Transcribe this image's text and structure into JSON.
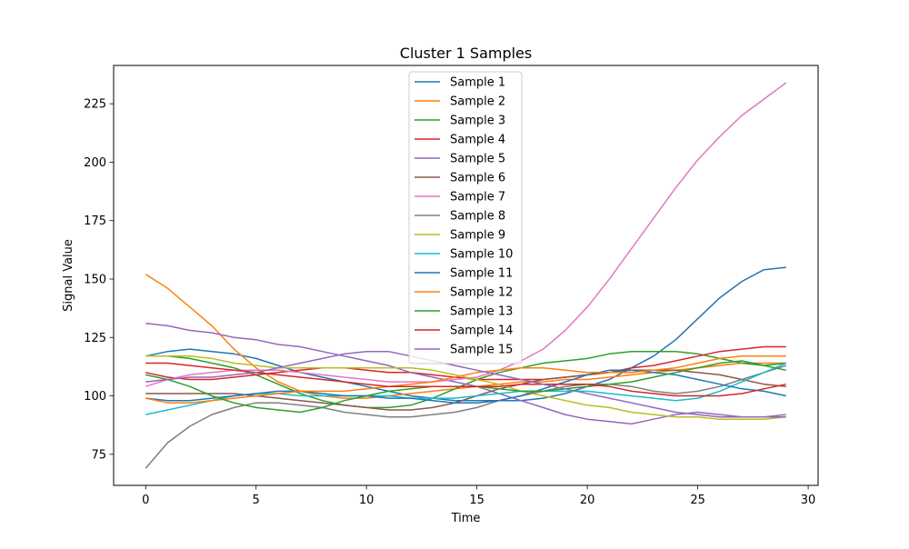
{
  "chart_data": {
    "type": "line",
    "title": "Cluster 1 Samples",
    "xlabel": "Time",
    "ylabel": "Signal Value",
    "xlim": [
      -1.45,
      30.45
    ],
    "ylim": [
      61.7,
      241.4
    ],
    "xticks": [
      0,
      5,
      10,
      15,
      20,
      25,
      30
    ],
    "yticks": [
      75,
      100,
      125,
      150,
      175,
      200,
      225
    ],
    "xtick_labels": [
      "0",
      "5",
      "10",
      "15",
      "20",
      "25",
      "30"
    ],
    "ytick_labels": [
      "75",
      "100",
      "125",
      "150",
      "175",
      "200",
      "225"
    ],
    "grid": false,
    "legend_position": "upper center",
    "x": [
      0,
      1,
      2,
      3,
      4,
      5,
      6,
      7,
      8,
      9,
      10,
      11,
      12,
      13,
      14,
      15,
      16,
      17,
      18,
      19,
      20,
      21,
      22,
      23,
      24,
      25,
      26,
      27,
      28,
      29
    ],
    "series": [
      {
        "name": "Sample 1",
        "color": "#1f77b4",
        "values": [
          117,
          119,
          120,
          119,
          118,
          116,
          113,
          110,
          108,
          106,
          104,
          102,
          100,
          99,
          98,
          98,
          98,
          98,
          99,
          101,
          104,
          107,
          112,
          117,
          124,
          133,
          142,
          149,
          154,
          155
        ]
      },
      {
        "name": "Sample 2",
        "color": "#ff7f0e",
        "values": [
          152,
          146,
          138,
          130,
          120,
          112,
          106,
          102,
          100,
          99,
          99,
          100,
          101,
          102,
          103,
          104,
          105,
          106,
          106,
          107,
          107,
          108,
          109,
          110,
          111,
          112,
          113,
          114,
          114,
          114
        ]
      },
      {
        "name": "Sample 3",
        "color": "#2ca02c",
        "values": [
          117,
          117,
          116,
          114,
          112,
          109,
          105,
          101,
          98,
          96,
          95,
          95,
          96,
          99,
          103,
          107,
          110,
          112,
          114,
          115,
          116,
          118,
          119,
          119,
          119,
          118,
          116,
          114,
          113,
          114
        ]
      },
      {
        "name": "Sample 4",
        "color": "#d62728",
        "values": [
          110,
          108,
          107,
          107,
          108,
          109,
          110,
          111,
          112,
          112,
          111,
          110,
          110,
          109,
          108,
          107,
          107,
          107,
          107,
          108,
          109,
          110,
          112,
          113,
          115,
          117,
          119,
          120,
          121,
          121
        ]
      },
      {
        "name": "Sample 5",
        "color": "#9467bd",
        "values": [
          131,
          130,
          128,
          127,
          125,
          124,
          122,
          121,
          119,
          117,
          115,
          113,
          110,
          108,
          106,
          104,
          101,
          98,
          95,
          92,
          90,
          89,
          88,
          90,
          92,
          93,
          92,
          91,
          91,
          92
        ]
      },
      {
        "name": "Sample 6",
        "color": "#8c564b",
        "values": [
          101,
          101,
          101,
          101,
          101,
          100,
          99,
          98,
          97,
          96,
          95,
          94,
          94,
          95,
          97,
          100,
          103,
          105,
          107,
          108,
          109,
          110,
          111,
          111,
          111,
          110,
          109,
          107,
          105,
          104
        ]
      },
      {
        "name": "Sample 7",
        "color": "#e377c2",
        "values": [
          104,
          107,
          109,
          110,
          111,
          111,
          111,
          110,
          109,
          108,
          107,
          106,
          106,
          106,
          107,
          108,
          111,
          115,
          120,
          128,
          138,
          150,
          163,
          176,
          189,
          201,
          211,
          220,
          227,
          234
        ]
      },
      {
        "name": "Sample 8",
        "color": "#7f7f7f",
        "values": [
          69,
          80,
          87,
          92,
          95,
          97,
          97,
          96,
          95,
          93,
          92,
          91,
          91,
          92,
          93,
          95,
          98,
          100,
          102,
          104,
          105,
          105,
          104,
          102,
          101,
          102,
          104,
          107,
          110,
          113
        ]
      },
      {
        "name": "Sample 9",
        "color": "#bcbd22",
        "values": [
          117,
          117,
          117,
          116,
          114,
          113,
          112,
          112,
          112,
          112,
          112,
          112,
          112,
          111,
          109,
          107,
          105,
          102,
          100,
          98,
          96,
          95,
          93,
          92,
          91,
          91,
          90,
          90,
          90,
          91
        ]
      },
      {
        "name": "Sample 10",
        "color": "#17becf",
        "values": [
          92,
          94,
          96,
          98,
          100,
          101,
          101,
          100,
          100,
          100,
          100,
          100,
          99,
          99,
          99,
          100,
          101,
          102,
          102,
          102,
          102,
          101,
          100,
          99,
          98,
          99,
          102,
          106,
          110,
          114
        ]
      },
      {
        "name": "Sample 11",
        "color": "#1f77b4",
        "values": [
          99,
          98,
          98,
          99,
          100,
          101,
          102,
          102,
          101,
          100,
          100,
          99,
          99,
          98,
          97,
          97,
          98,
          100,
          103,
          106,
          109,
          111,
          111,
          110,
          109,
          107,
          105,
          103,
          102,
          100
        ]
      },
      {
        "name": "Sample 12",
        "color": "#ff7f0e",
        "values": [
          99,
          97,
          97,
          98,
          99,
          100,
          101,
          102,
          102,
          102,
          103,
          104,
          105,
          106,
          108,
          110,
          111,
          112,
          112,
          111,
          110,
          110,
          110,
          111,
          112,
          114,
          116,
          117,
          117,
          117
        ]
      },
      {
        "name": "Sample 13",
        "color": "#2ca02c",
        "values": [
          109,
          107,
          104,
          100,
          97,
          95,
          94,
          93,
          95,
          98,
          100,
          102,
          103,
          104,
          104,
          104,
          103,
          102,
          102,
          103,
          104,
          105,
          106,
          108,
          110,
          112,
          114,
          115,
          113,
          111
        ]
      },
      {
        "name": "Sample 14",
        "color": "#d62728",
        "values": [
          114,
          114,
          113,
          112,
          111,
          110,
          109,
          108,
          107,
          106,
          105,
          104,
          104,
          104,
          104,
          104,
          104,
          105,
          105,
          105,
          105,
          104,
          102,
          101,
          100,
          100,
          100,
          101,
          103,
          105
        ]
      },
      {
        "name": "Sample 15",
        "color": "#9467bd",
        "values": [
          106,
          107,
          108,
          108,
          109,
          110,
          112,
          114,
          116,
          118,
          119,
          119,
          117,
          115,
          113,
          111,
          109,
          107,
          105,
          103,
          101,
          99,
          97,
          95,
          93,
          92,
          91,
          91,
          91,
          91
        ]
      }
    ]
  }
}
